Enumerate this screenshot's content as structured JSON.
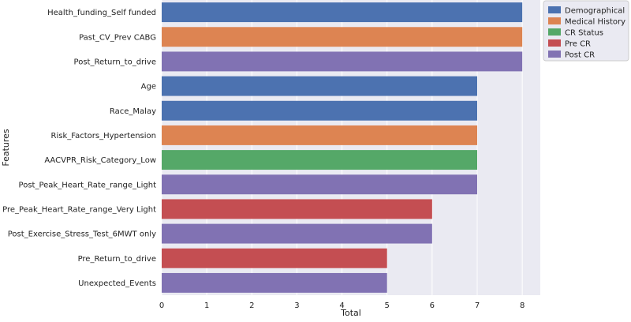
{
  "chart_data": {
    "type": "bar",
    "orientation": "horizontal",
    "xlabel": "Total",
    "ylabel": "Features",
    "xlim": [
      0,
      8.4
    ],
    "xticks": [
      0,
      1,
      2,
      3,
      4,
      5,
      6,
      7,
      8
    ],
    "grid": true,
    "legend_position": "top-right",
    "groups": [
      {
        "name": "Demographical",
        "color": "#4c72b0"
      },
      {
        "name": "Medical History",
        "color": "#dd8452"
      },
      {
        "name": "CR Status",
        "color": "#55a868"
      },
      {
        "name": "Pre CR",
        "color": "#c44e52"
      },
      {
        "name": "Post CR",
        "color": "#8172b3"
      }
    ],
    "categories": [
      "Health_funding_Self funded",
      "Past_CV_Prev CABG",
      "Post_Return_to_drive",
      "Age",
      "Race_Malay",
      "Risk_Factors_Hypertension",
      "AACVPR_Risk_Category_Low",
      "Post_Peak_Heart_Rate_range_Light",
      "Pre_Peak_Heart_Rate_range_Very Light",
      "Post_Exercise_Stress_Test_6MWT only",
      "Pre_Return_to_drive",
      "Unexpected_Events"
    ],
    "values": [
      8,
      8,
      8,
      7,
      7,
      7,
      7,
      7,
      6,
      6,
      5,
      5
    ],
    "bar_groups": [
      "Demographical",
      "Medical History",
      "Post CR",
      "Demographical",
      "Demographical",
      "Medical History",
      "CR Status",
      "Post CR",
      "Pre CR",
      "Post CR",
      "Pre CR",
      "Post CR"
    ]
  }
}
